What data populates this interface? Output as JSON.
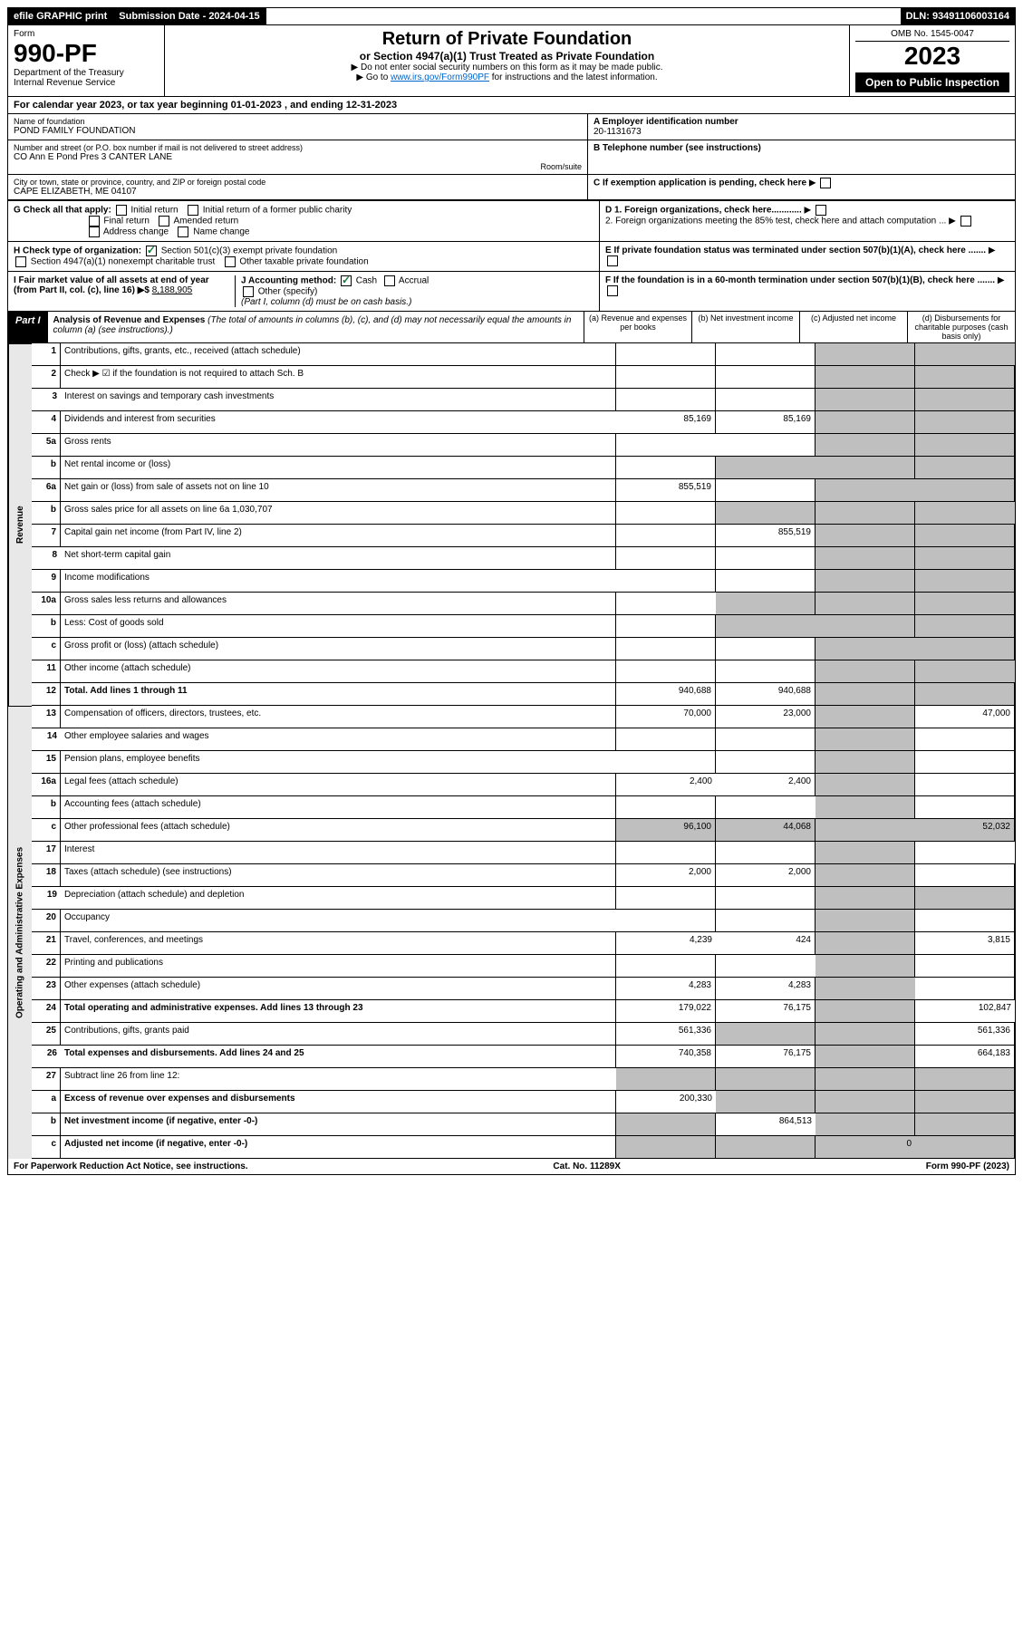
{
  "topbar": {
    "efile": "efile GRAPHIC print",
    "sub_label": "Submission Date - 2024-04-15",
    "dln": "DLN: 93491106003164"
  },
  "header": {
    "form": "Form",
    "formnum": "990-PF",
    "dept": "Department of the Treasury\nInternal Revenue Service",
    "title": "Return of Private Foundation",
    "sub": "or Section 4947(a)(1) Trust Treated as Private Foundation",
    "note1": "▶ Do not enter social security numbers on this form as it may be made public.",
    "note2_pre": "▶ Go to ",
    "note2_link": "www.irs.gov/Form990PF",
    "note2_post": " for instructions and the latest information.",
    "omb": "OMB No. 1545-0047",
    "year": "2023",
    "otp": "Open to Public Inspection"
  },
  "calyear": "For calendar year 2023, or tax year beginning 01-01-2023   , and ending 12-31-2023",
  "entity": {
    "name_lbl": "Name of foundation",
    "name": "POND FAMILY FOUNDATION",
    "ein_lbl": "A Employer identification number",
    "ein": "20-1131673",
    "addr_lbl": "Number and street (or P.O. box number if mail is not delivered to street address)",
    "addr": "CO Ann E Pond Pres 3 CANTER LANE",
    "room_lbl": "Room/suite",
    "tel_lbl": "B Telephone number (see instructions)",
    "city_lbl": "City or town, state or province, country, and ZIP or foreign postal code",
    "city": "CAPE ELIZABETH, ME  04107",
    "c_lbl": "C If exemption application is pending, check here"
  },
  "checks": {
    "g": "G Check all that apply:",
    "g1": "Initial return",
    "g2": "Initial return of a former public charity",
    "g3": "Final return",
    "g4": "Amended return",
    "g5": "Address change",
    "g6": "Name change",
    "h": "H Check type of organization:",
    "h1": "Section 501(c)(3) exempt private foundation",
    "h2": "Section 4947(a)(1) nonexempt charitable trust",
    "h3": "Other taxable private foundation",
    "i": "I Fair market value of all assets at end of year (from Part II, col. (c), line 16) ▶$ ",
    "i_val": "8,188,905",
    "j": "J Accounting method:",
    "j1": "Cash",
    "j2": "Accrual",
    "j3": "Other (specify)",
    "j_note": "(Part I, column (d) must be on cash basis.)",
    "d1": "D 1. Foreign organizations, check here............",
    "d2": "2. Foreign organizations meeting the 85% test, check here and attach computation ...",
    "e": "E  If private foundation status was terminated under section 507(b)(1)(A), check here .......",
    "f": "F  If the foundation is in a 60-month termination under section 507(b)(1)(B), check here ......."
  },
  "part1": {
    "label": "Part I",
    "title_bold": "Analysis of Revenue and Expenses",
    "title_rest": " (The total of amounts in columns (b), (c), and (d) may not necessarily equal the amounts in column (a) (see instructions).)",
    "ca": "(a)  Revenue and expenses per books",
    "cb": "(b)  Net investment income",
    "cc": "(c)  Adjusted net income",
    "cd": "(d)  Disbursements for charitable purposes (cash basis only)"
  },
  "sections": {
    "rev": "Revenue",
    "oae": "Operating and Administrative Expenses"
  },
  "rows": [
    {
      "n": "1",
      "d": "Contributions, gifts, grants, etc., received (attach schedule)"
    },
    {
      "n": "2",
      "d": "Check ▶ ☑ if the foundation is not required to attach Sch. B"
    },
    {
      "n": "3",
      "d": "Interest on savings and temporary cash investments"
    },
    {
      "n": "4",
      "d": "Dividends and interest from securities",
      "a": "85,169",
      "b": "85,169"
    },
    {
      "n": "5a",
      "d": "Gross rents"
    },
    {
      "n": "b",
      "d": "Net rental income or (loss)"
    },
    {
      "n": "6a",
      "d": "Net gain or (loss) from sale of assets not on line 10",
      "a": "855,519"
    },
    {
      "n": "b",
      "d": "Gross sales price for all assets on line 6a  1,030,707"
    },
    {
      "n": "7",
      "d": "Capital gain net income (from Part IV, line 2)",
      "b": "855,519"
    },
    {
      "n": "8",
      "d": "Net short-term capital gain"
    },
    {
      "n": "9",
      "d": "Income modifications"
    },
    {
      "n": "10a",
      "d": "Gross sales less returns and allowances"
    },
    {
      "n": "b",
      "d": "Less: Cost of goods sold"
    },
    {
      "n": "c",
      "d": "Gross profit or (loss) (attach schedule)"
    },
    {
      "n": "11",
      "d": "Other income (attach schedule)"
    },
    {
      "n": "12",
      "d": "Total. Add lines 1 through 11",
      "a": "940,688",
      "b": "940,688",
      "bold": true
    },
    {
      "n": "13",
      "d": "Compensation of officers, directors, trustees, etc.",
      "a": "70,000",
      "b": "23,000",
      "dd": "47,000"
    },
    {
      "n": "14",
      "d": "Other employee salaries and wages"
    },
    {
      "n": "15",
      "d": "Pension plans, employee benefits"
    },
    {
      "n": "16a",
      "d": "Legal fees (attach schedule)",
      "a": "2,400",
      "b": "2,400"
    },
    {
      "n": "b",
      "d": "Accounting fees (attach schedule)"
    },
    {
      "n": "c",
      "d": "Other professional fees (attach schedule)",
      "a": "96,100",
      "b": "44,068",
      "dd": "52,032"
    },
    {
      "n": "17",
      "d": "Interest"
    },
    {
      "n": "18",
      "d": "Taxes (attach schedule) (see instructions)",
      "a": "2,000",
      "b": "2,000"
    },
    {
      "n": "19",
      "d": "Depreciation (attach schedule) and depletion"
    },
    {
      "n": "20",
      "d": "Occupancy"
    },
    {
      "n": "21",
      "d": "Travel, conferences, and meetings",
      "a": "4,239",
      "b": "424",
      "dd": "3,815"
    },
    {
      "n": "22",
      "d": "Printing and publications"
    },
    {
      "n": "23",
      "d": "Other expenses (attach schedule)",
      "a": "4,283",
      "b": "4,283"
    },
    {
      "n": "24",
      "d": "Total operating and administrative expenses. Add lines 13 through 23",
      "a": "179,022",
      "b": "76,175",
      "dd": "102,847",
      "bold": true
    },
    {
      "n": "25",
      "d": "Contributions, gifts, grants paid",
      "a": "561,336",
      "dd": "561,336"
    },
    {
      "n": "26",
      "d": "Total expenses and disbursements. Add lines 24 and 25",
      "a": "740,358",
      "b": "76,175",
      "dd": "664,183",
      "bold": true
    },
    {
      "n": "27",
      "d": "Subtract line 26 from line 12:"
    },
    {
      "n": "a",
      "d": "Excess of revenue over expenses and disbursements",
      "a": "200,330",
      "bold": true
    },
    {
      "n": "b",
      "d": "Net investment income (if negative, enter -0-)",
      "b": "864,513",
      "bold": true
    },
    {
      "n": "c",
      "d": "Adjusted net income (if negative, enter -0-)",
      "c": "0",
      "bold": true
    }
  ],
  "grey_cells": {
    "rev_c": [
      "1",
      "2",
      "3",
      "4",
      "5a",
      "6a",
      "7",
      "8",
      "11",
      "12"
    ],
    "rev_d": [
      "1",
      "2",
      "3",
      "4",
      "5a",
      "b",
      "6a",
      "b2",
      "7",
      "8",
      "9",
      "10a",
      "b3",
      "c",
      "11",
      "12"
    ],
    "rev_b": [
      "b",
      "b2",
      "10a",
      "b3"
    ],
    "oae_c": [
      "13",
      "14",
      "15",
      "16a",
      "b",
      "c",
      "17",
      "18",
      "19",
      "20",
      "21",
      "22",
      "23",
      "24",
      "25",
      "26"
    ],
    "19d": true,
    "25b": true,
    "27all": true,
    "ab": true,
    "ac": true,
    "ad": true,
    "ba": true,
    "bc": true,
    "bd": true,
    "ca": true,
    "cb": true,
    "cd": true
  },
  "footer": {
    "left": "For Paperwork Reduction Act Notice, see instructions.",
    "mid": "Cat. No. 11289X",
    "right": "Form 990-PF (2023)"
  }
}
